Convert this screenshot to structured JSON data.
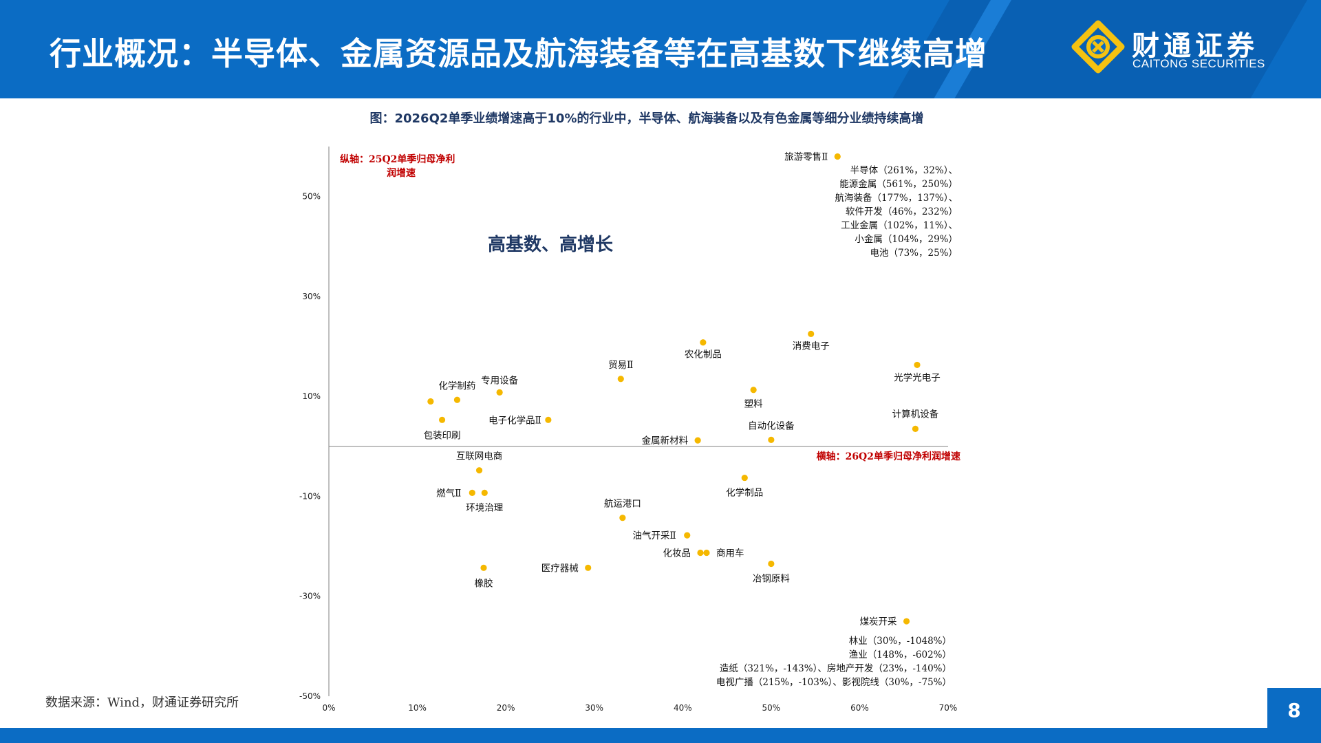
{
  "header": {
    "title": "行业概况：半导体、金属资源品及航海装备等在高基数下继续高增",
    "brand_cn": "财通证券",
    "brand_en": "CAITONG SECURITIES"
  },
  "colors": {
    "primary": "#0b6cc4",
    "point": "#f5b800",
    "accent_red": "#c00000",
    "title_navy": "#1f3864"
  },
  "footer": {
    "source": "数据来源：Wind，财通证券研究所",
    "page_number": "8"
  },
  "chart_data": {
    "type": "scatter",
    "title": "图：2026Q2单季业绩增速高于10%的行业中，半导体、航海装备以及有色金属等细分业绩持续高增",
    "y_axis_note": [
      "纵轴：25Q2单季归母净利",
      "润增速"
    ],
    "x_axis_note": "横轴：26Q2单季归母净利润增速",
    "quadrant_label": "高基数、高增长",
    "xlim": [
      0,
      70
    ],
    "ylim": [
      -50,
      60
    ],
    "x_ticks": [
      "0%",
      "10%",
      "20%",
      "30%",
      "40%",
      "50%",
      "60%",
      "70%"
    ],
    "y_ticks": [
      "50%",
      "30%",
      "10%",
      "-10%",
      "-30%",
      "-50%"
    ],
    "points": [
      {
        "label": "旅游零售Ⅱ",
        "x": 57.5,
        "y": 58.0
      },
      {
        "label": "消费电子",
        "x": 54.5,
        "y": 22.5
      },
      {
        "label": "农化制品",
        "x": 42.3,
        "y": 20.8
      },
      {
        "label": "光学光电子",
        "x": 66.5,
        "y": 16.3
      },
      {
        "label": "贸易Ⅱ",
        "x": 33.0,
        "y": 13.5
      },
      {
        "label": "塑料",
        "x": 48.0,
        "y": 11.3
      },
      {
        "label": "专用设备",
        "x": 19.3,
        "y": 10.8
      },
      {
        "label": "化学制药",
        "x": 14.5,
        "y": 9.3
      },
      {
        "label": "",
        "x": 11.5,
        "y": 9.0
      },
      {
        "label": "电子化学品Ⅱ",
        "x": 24.8,
        "y": 5.3
      },
      {
        "label": "包装印刷",
        "x": 12.8,
        "y": 5.3
      },
      {
        "label": "计算机设备",
        "x": 66.3,
        "y": 3.5
      },
      {
        "label": "自动化设备",
        "x": 50.0,
        "y": 1.3
      },
      {
        "label": "金属新材料",
        "x": 41.7,
        "y": 1.2
      },
      {
        "label": "互联网电商",
        "x": 17.0,
        "y": -4.8
      },
      {
        "label": "化学制品",
        "x": 47.0,
        "y": -6.3
      },
      {
        "label": "燃气Ⅱ",
        "x": 16.2,
        "y": -9.3
      },
      {
        "label": "环境治理",
        "x": 17.6,
        "y": -9.3
      },
      {
        "label": "航运港口",
        "x": 33.2,
        "y": -14.3
      },
      {
        "label": "油气开采Ⅱ",
        "x": 40.5,
        "y": -17.8
      },
      {
        "label": "化妆品",
        "x": 42.0,
        "y": -21.3
      },
      {
        "label": "商用车",
        "x": 42.7,
        "y": -21.3
      },
      {
        "label": "冶钢原料",
        "x": 50.0,
        "y": -23.5
      },
      {
        "label": "橡胶",
        "x": 17.5,
        "y": -24.3
      },
      {
        "label": "医疗器械",
        "x": 29.3,
        "y": -24.3
      },
      {
        "label": "煤炭开采",
        "x": 65.3,
        "y": -35.0
      }
    ],
    "offscale_top": [
      "半导体（261%，32%）、",
      "能源金属（561%，250%）",
      "航海装备（177%，137%）、",
      "软件开发（46%，232%）",
      "工业金属（102%，11%）、",
      "小金属（104%，29%）",
      "电池（73%，25%）"
    ],
    "offscale_bottom": [
      "林业（30%，-1048%）",
      "渔业（148%，-602%）",
      "造纸（321%，-143%）、房地产开发（23%，-140%）",
      "电视广播（215%，-103%）、影视院线（30%，-75%）"
    ]
  }
}
